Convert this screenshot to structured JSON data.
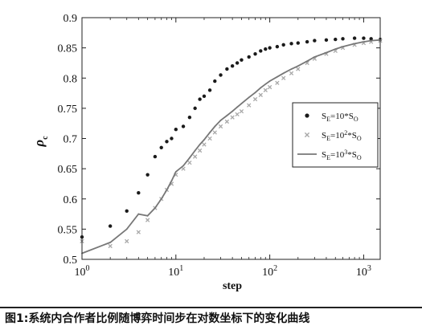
{
  "caption": "图1:系统内合作者比例随博弈时间步在对数坐标下的变化曲线",
  "chart_data": {
    "type": "scatter",
    "title": "",
    "xlabel": "step",
    "ylabel": "ρ",
    "ylabel_sub": "c",
    "xscale": "log",
    "xlim": [
      1,
      1500
    ],
    "ylim": [
      0.5,
      0.9
    ],
    "yticks": [
      0.5,
      0.55,
      0.6,
      0.65,
      0.7,
      0.75,
      0.8,
      0.85,
      0.9
    ],
    "ytick_labels": [
      "0.5",
      "0.55",
      "0.6",
      "0.65",
      "0.7",
      "0.75",
      "0.8",
      "0.85",
      "0.9"
    ],
    "xticks": [
      1,
      10,
      100,
      1000
    ],
    "xtick_labels": [
      {
        "base": "10",
        "exp": "0"
      },
      {
        "base": "10",
        "exp": "1"
      },
      {
        "base": "10",
        "exp": "2"
      },
      {
        "base": "10",
        "exp": "3"
      }
    ],
    "grid": false,
    "legend_position": "right-center",
    "series": [
      {
        "name": "S_E=10*S_O",
        "legend": {
          "a": "S",
          "a_sub": "E",
          "b": "=10*S",
          "b_sub": "O",
          "sup": ""
        },
        "marker": "dot",
        "color": "#1a1a1a",
        "x": [
          1,
          2,
          3,
          4,
          5,
          6,
          7,
          8,
          9,
          10,
          12,
          14,
          16,
          18,
          20,
          23,
          26,
          30,
          35,
          40,
          45,
          50,
          60,
          70,
          80,
          90,
          100,
          120,
          140,
          170,
          200,
          250,
          300,
          400,
          500,
          600,
          800,
          1000,
          1200,
          1500
        ],
        "y": [
          0.537,
          0.555,
          0.58,
          0.61,
          0.64,
          0.67,
          0.685,
          0.695,
          0.7,
          0.715,
          0.72,
          0.735,
          0.75,
          0.765,
          0.77,
          0.78,
          0.795,
          0.805,
          0.815,
          0.82,
          0.825,
          0.83,
          0.835,
          0.84,
          0.845,
          0.848,
          0.85,
          0.852,
          0.855,
          0.857,
          0.858,
          0.86,
          0.862,
          0.863,
          0.864,
          0.865,
          0.866,
          0.866,
          0.865,
          0.864
        ]
      },
      {
        "name": "S_E=10^2*S_O",
        "legend": {
          "a": "S",
          "a_sub": "E",
          "b": "=10",
          "b_sub": "O",
          "sup": "2"
        },
        "marker": "cross",
        "color": "#a8a8a8",
        "x": [
          1,
          2,
          3,
          4,
          5,
          6,
          7,
          8,
          9,
          10,
          12,
          14,
          16,
          18,
          20,
          23,
          26,
          30,
          35,
          40,
          45,
          50,
          60,
          70,
          80,
          90,
          100,
          120,
          140,
          170,
          200,
          250,
          300,
          400,
          500,
          600,
          800,
          1000,
          1200,
          1500
        ],
        "y": [
          0.53,
          0.522,
          0.53,
          0.545,
          0.565,
          0.585,
          0.6,
          0.615,
          0.625,
          0.64,
          0.65,
          0.66,
          0.67,
          0.68,
          0.69,
          0.7,
          0.71,
          0.72,
          0.728,
          0.735,
          0.74,
          0.745,
          0.755,
          0.765,
          0.772,
          0.78,
          0.785,
          0.792,
          0.8,
          0.808,
          0.815,
          0.825,
          0.832,
          0.84,
          0.845,
          0.85,
          0.855,
          0.858,
          0.86,
          0.862
        ]
      },
      {
        "name": "S_E=10^3*S_O",
        "legend": {
          "a": "S",
          "a_sub": "E",
          "b": "=10",
          "b_sub": "O",
          "sup": "3"
        },
        "marker": "line",
        "color": "#777777",
        "x": [
          1,
          2,
          3,
          4,
          5,
          6,
          7,
          8,
          9,
          10,
          12,
          14,
          16,
          18,
          20,
          23,
          26,
          30,
          35,
          40,
          45,
          50,
          60,
          70,
          80,
          90,
          100,
          120,
          140,
          170,
          200,
          250,
          300,
          400,
          500,
          600,
          800,
          1000,
          1200,
          1500
        ],
        "y": [
          0.51,
          0.528,
          0.55,
          0.575,
          0.572,
          0.585,
          0.6,
          0.615,
          0.63,
          0.645,
          0.655,
          0.668,
          0.68,
          0.69,
          0.698,
          0.71,
          0.72,
          0.73,
          0.738,
          0.745,
          0.752,
          0.758,
          0.768,
          0.776,
          0.784,
          0.79,
          0.795,
          0.802,
          0.808,
          0.815,
          0.82,
          0.828,
          0.835,
          0.842,
          0.848,
          0.852,
          0.857,
          0.86,
          0.862,
          0.863
        ]
      }
    ]
  }
}
